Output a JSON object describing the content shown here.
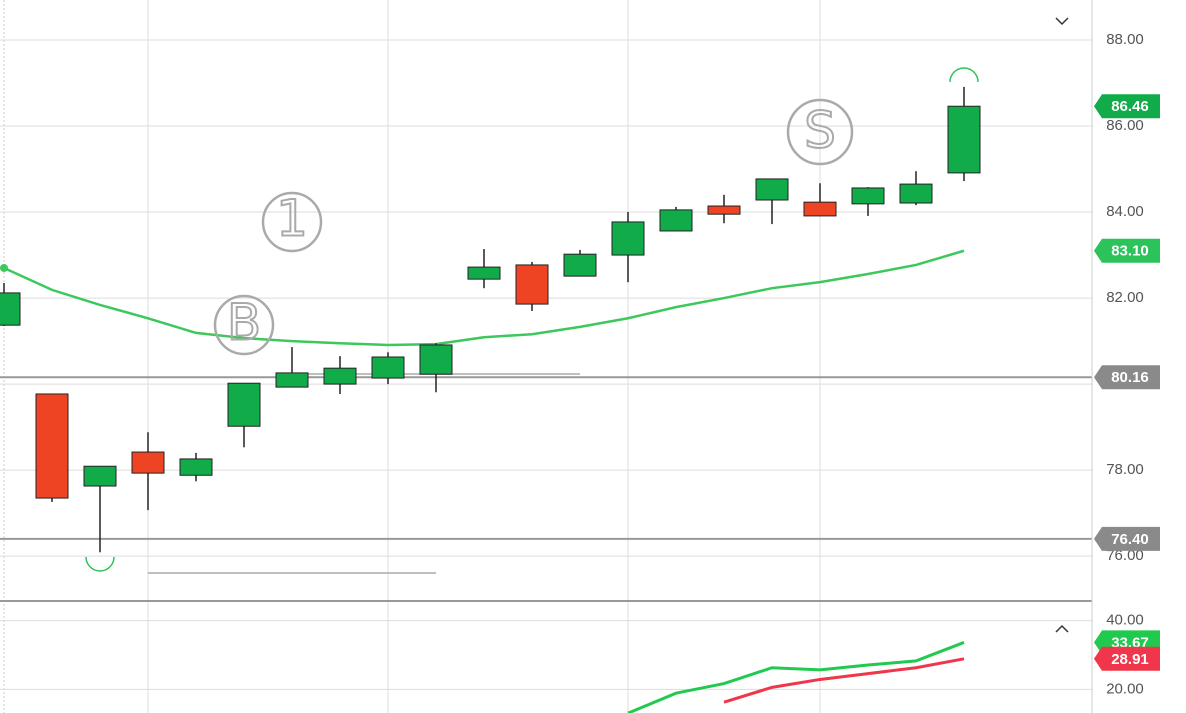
{
  "chart_data": {
    "type": "candlestick",
    "up_color": "#12ab4a",
    "down_color": "#ee4424",
    "candles": {
      "open": [
        81.37,
        79.77,
        77.63,
        78.42,
        77.88,
        79.02,
        79.93,
        80.0,
        80.14,
        80.23,
        82.44,
        82.77,
        82.51,
        83.0,
        83.56,
        84.14,
        84.28,
        84.23,
        84.19,
        84.21,
        84.91
      ],
      "high": [
        82.35,
        79.77,
        78.09,
        78.88,
        78.4,
        80.02,
        80.86,
        80.65,
        80.74,
        80.95,
        83.14,
        82.84,
        83.12,
        84.0,
        84.12,
        84.4,
        84.77,
        84.67,
        84.58,
        84.95,
        86.91
      ],
      "low": [
        81.35,
        77.26,
        76.09,
        77.07,
        77.74,
        78.53,
        79.93,
        79.77,
        80.0,
        79.81,
        82.23,
        81.7,
        82.51,
        82.37,
        83.56,
        83.74,
        83.72,
        83.91,
        83.91,
        84.16,
        84.72
      ],
      "close": [
        82.12,
        77.35,
        78.09,
        77.93,
        78.26,
        80.02,
        80.26,
        80.37,
        80.63,
        80.91,
        82.72,
        81.86,
        83.02,
        83.77,
        84.05,
        83.95,
        84.77,
        83.91,
        84.56,
        84.65,
        86.46
      ]
    },
    "moving_average": {
      "color": "#3cc85a",
      "values": [
        82.7,
        82.19,
        81.84,
        81.53,
        81.19,
        81.07,
        81.0,
        80.95,
        80.91,
        80.93,
        81.09,
        81.16,
        81.33,
        81.53,
        81.79,
        82.0,
        82.23,
        82.37,
        82.56,
        82.77,
        83.1
      ],
      "last_label": "83.10"
    },
    "levels": [
      {
        "value": 80.16,
        "label": "80.16"
      },
      {
        "value": 76.4,
        "label": "76.40"
      }
    ],
    "annotations": [
      "1",
      "B",
      "S"
    ],
    "ylim": [
      74.98,
      88.93
    ],
    "yticks": [
      {
        "value": 76,
        "label": "76.00"
      },
      {
        "value": 78,
        "label": "78.00"
      },
      {
        "value": 80,
        "label": "80.00"
      },
      {
        "value": 82,
        "label": "82.00"
      },
      {
        "value": 84,
        "label": "84.00"
      },
      {
        "value": 86,
        "label": "86.00"
      },
      {
        "value": 88,
        "label": "88.00"
      }
    ],
    "grid": true,
    "indicator": {
      "type": "line",
      "ylim": [
        13.14,
        45.43
      ],
      "yticks": [
        {
          "value": 20,
          "label": "20.00"
        },
        {
          "value": 40,
          "label": "40.00"
        }
      ],
      "series": [
        {
          "color": "#22c94f",
          "values": [
            null,
            null,
            null,
            null,
            null,
            null,
            null,
            null,
            null,
            null,
            null,
            null,
            null,
            13.1,
            18.9,
            21.7,
            26.3,
            25.7,
            27.1,
            28.3,
            33.67
          ]
        },
        {
          "color": "#f0364a",
          "values": [
            null,
            null,
            null,
            null,
            null,
            null,
            null,
            null,
            null,
            null,
            null,
            null,
            null,
            null,
            null,
            16.3,
            20.6,
            22.9,
            24.6,
            26.3,
            28.91
          ]
        }
      ]
    }
  }
}
